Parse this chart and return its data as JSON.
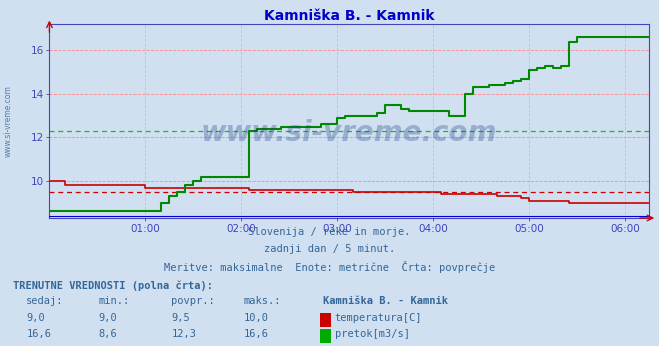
{
  "title": "Kamniška B. - Kamnik",
  "title_color": "#0000cc",
  "bg_color": "#d0e0f0",
  "plot_bg_color": "#d0e0f0",
  "grid_color_h": "#ff8888",
  "grid_color_v": "#ffaaaa",
  "xlim": [
    0,
    75
  ],
  "ylim": [
    8.3,
    17.2
  ],
  "yticks": [
    10,
    12,
    14,
    16
  ],
  "xtick_labels": [
    "01:00",
    "02:00",
    "03:00",
    "04:00",
    "05:00",
    "06:00"
  ],
  "xtick_positions": [
    12,
    24,
    36,
    48,
    60,
    72
  ],
  "temp_avg": 9.5,
  "flow_avg": 12.3,
  "temp_color": "#cc0000",
  "flow_color": "#008800",
  "avg_temp_color": "#cc0000",
  "avg_flow_color": "#00cc00",
  "border_color": "#4444bb",
  "watermark": "www.si-vreme.com",
  "watermark_color": "#1a3a8a",
  "watermark_alpha": 0.3,
  "sub_text1": "Slovenija / reke in morje.",
  "sub_text2": "zadnji dan / 5 minut.",
  "sub_text3": "Meritve: maksimalne  Enote: metrične  Črta: povprečje",
  "sub_text_color": "#336699",
  "table_title": "TRENUTNE VREDNOSTI (polna črta):",
  "col_headers": [
    "sedaj:",
    "min.:",
    "povpr.:",
    "maks.:",
    "Kamniška B. - Kamnik"
  ],
  "temp_row": [
    "9,0",
    "9,0",
    "9,5",
    "10,0"
  ],
  "flow_row": [
    "16,6",
    "8,6",
    "12,3",
    "16,6"
  ],
  "temp_label": "temperatura[C]",
  "flow_label": "pretok[m3/s]",
  "height_line_y": 8.4,
  "temp_data_x": [
    0,
    1,
    2,
    3,
    4,
    5,
    6,
    7,
    8,
    9,
    10,
    11,
    12,
    13,
    14,
    15,
    16,
    17,
    18,
    19,
    20,
    21,
    22,
    23,
    24,
    25,
    26,
    27,
    28,
    29,
    30,
    31,
    32,
    33,
    34,
    35,
    36,
    37,
    38,
    39,
    40,
    41,
    42,
    43,
    44,
    45,
    46,
    47,
    48,
    49,
    50,
    51,
    52,
    53,
    54,
    55,
    56,
    57,
    58,
    59,
    60,
    61,
    62,
    63,
    64,
    65,
    66,
    67,
    68,
    69,
    70,
    71,
    72,
    73,
    74,
    75
  ],
  "temp_data_y": [
    10.0,
    10.0,
    9.8,
    9.8,
    9.8,
    9.8,
    9.8,
    9.8,
    9.8,
    9.8,
    9.8,
    9.8,
    9.7,
    9.7,
    9.7,
    9.7,
    9.7,
    9.7,
    9.7,
    9.7,
    9.7,
    9.7,
    9.7,
    9.7,
    9.7,
    9.6,
    9.6,
    9.6,
    9.6,
    9.6,
    9.6,
    9.6,
    9.6,
    9.6,
    9.6,
    9.6,
    9.6,
    9.6,
    9.5,
    9.5,
    9.5,
    9.5,
    9.5,
    9.5,
    9.5,
    9.5,
    9.5,
    9.5,
    9.5,
    9.4,
    9.4,
    9.4,
    9.4,
    9.4,
    9.4,
    9.4,
    9.3,
    9.3,
    9.3,
    9.2,
    9.1,
    9.1,
    9.1,
    9.1,
    9.1,
    9.0,
    9.0,
    9.0,
    9.0,
    9.0,
    9.0,
    9.0,
    9.0,
    9.0,
    9.0,
    9.0
  ],
  "flow_data_x": [
    0,
    1,
    2,
    3,
    4,
    5,
    6,
    7,
    8,
    9,
    10,
    11,
    12,
    13,
    14,
    15,
    16,
    17,
    18,
    19,
    20,
    21,
    22,
    23,
    24,
    25,
    26,
    27,
    28,
    29,
    30,
    31,
    32,
    33,
    34,
    35,
    36,
    37,
    38,
    39,
    40,
    41,
    42,
    43,
    44,
    45,
    46,
    47,
    48,
    49,
    50,
    51,
    52,
    53,
    54,
    55,
    56,
    57,
    58,
    59,
    60,
    61,
    62,
    63,
    64,
    65,
    66,
    67,
    68,
    69,
    70,
    71,
    72,
    73,
    74,
    75
  ],
  "flow_data_y": [
    8.6,
    8.6,
    8.6,
    8.6,
    8.6,
    8.6,
    8.6,
    8.6,
    8.6,
    8.6,
    8.6,
    8.6,
    8.6,
    8.6,
    9.0,
    9.3,
    9.5,
    9.8,
    10.0,
    10.2,
    10.2,
    10.2,
    10.2,
    10.2,
    10.2,
    12.3,
    12.4,
    12.4,
    12.4,
    12.5,
    12.5,
    12.5,
    12.5,
    12.5,
    12.6,
    12.6,
    12.9,
    13.0,
    13.0,
    13.0,
    13.0,
    13.1,
    13.5,
    13.5,
    13.3,
    13.2,
    13.2,
    13.2,
    13.2,
    13.2,
    13.0,
    13.0,
    14.0,
    14.3,
    14.3,
    14.4,
    14.4,
    14.5,
    14.6,
    14.7,
    15.1,
    15.2,
    15.3,
    15.2,
    15.3,
    16.4,
    16.6,
    16.6,
    16.6,
    16.6,
    16.6,
    16.6,
    16.6,
    16.6,
    16.6,
    16.6
  ]
}
